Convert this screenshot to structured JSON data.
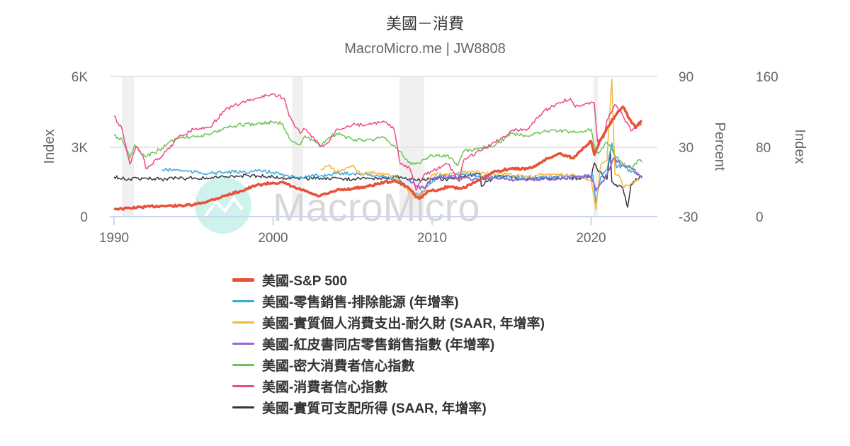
{
  "header": {
    "title": "美國－消費",
    "subtitle": "MacroMicro.me | JW8808"
  },
  "watermark": {
    "text": "MacroMicro",
    "logo": "macromicro-logo-icon"
  },
  "axes": {
    "left": {
      "title": "Index",
      "ticks": [
        "6K",
        "3K",
        "0"
      ]
    },
    "right1": {
      "title": "Percent",
      "ticks": [
        "90",
        "30",
        "-30"
      ]
    },
    "right2": {
      "title": "Index",
      "ticks": [
        "160",
        "80",
        "0"
      ]
    },
    "x": {
      "ticks": [
        "1990",
        "2000",
        "2010",
        "2020"
      ]
    }
  },
  "legend": [
    {
      "label": "美國-S&P 500",
      "color": "#e8513a"
    },
    {
      "label": "美國-零售銷售-排除能源 (年增率)",
      "color": "#3aa7d8"
    },
    {
      "label": "美國-實質個人消費支出-耐久財 (SAAR, 年增率)",
      "color": "#f4b63a"
    },
    {
      "label": "美國-紅皮書同店零售銷售指數 (年增率)",
      "color": "#9168e0"
    },
    {
      "label": "美國-密大消費者信心指數",
      "color": "#6cc454"
    },
    {
      "label": "美國-消費者信心指數",
      "color": "#ea4c86"
    },
    {
      "label": "美國-實質可支配所得 (SAAR, 年增率)",
      "color": "#333845"
    }
  ],
  "chart_data": {
    "type": "line",
    "title": "美國－消費",
    "subtitle": "MacroMicro.me | JW8808",
    "xlabel": "",
    "xlim": [
      1989.8,
      2023.3
    ],
    "x_ticks": [
      1990,
      2000,
      2010,
      2020
    ],
    "grid": true,
    "legend_position": "bottom",
    "recession_bands": [
      [
        1990.5,
        1991.25
      ],
      [
        2001.2,
        2001.9
      ],
      [
        2007.95,
        2009.5
      ],
      [
        2020.15,
        2020.4
      ]
    ],
    "y_axes": [
      {
        "id": "left",
        "title": "Index",
        "range": [
          0,
          6000
        ],
        "ticks": [
          0,
          3000,
          6000
        ],
        "tick_labels": [
          "0",
          "3K",
          "6K"
        ]
      },
      {
        "id": "percent",
        "title": "Percent",
        "range": [
          -30,
          90
        ],
        "ticks": [
          -30,
          30,
          90
        ]
      },
      {
        "id": "right_index",
        "title": "Index",
        "range": [
          0,
          160
        ],
        "ticks": [
          0,
          80,
          160
        ]
      }
    ],
    "series": [
      {
        "name": "美國-S&P 500",
        "axis": "left",
        "color": "#e8513a",
        "width": 3.5,
        "x": [
          1990,
          1990.5,
          1991,
          1992,
          1993,
          1994,
          1995,
          1996,
          1997,
          1998,
          1999,
          2000,
          2000.7,
          2001.5,
          2002,
          2002.8,
          2003.5,
          2004,
          2005,
          2006,
          2007,
          2007.8,
          2008.5,
          2009.2,
          2009.8,
          2010.5,
          2011,
          2011.8,
          2012.5,
          2013,
          2014,
          2015,
          2016,
          2016.5,
          2017,
          2018,
          2018.9,
          2019.5,
          2020,
          2020.2,
          2020.6,
          2021,
          2021.5,
          2022,
          2022.4,
          2022.8,
          2023.2
        ],
        "values": [
          340,
          330,
          370,
          420,
          460,
          460,
          500,
          680,
          900,
          1100,
          1350,
          1450,
          1440,
          1200,
          1100,
          880,
          990,
          1130,
          1200,
          1300,
          1480,
          1500,
          1250,
          760,
          1100,
          1150,
          1300,
          1200,
          1400,
          1550,
          1950,
          2050,
          2050,
          2150,
          2400,
          2700,
          2500,
          2950,
          3230,
          2650,
          3300,
          3800,
          4300,
          4700,
          4200,
          3800,
          4100
        ]
      },
      {
        "name": "美國-零售銷售-排除能源 (年增率)",
        "axis": "percent",
        "color": "#3aa7d8",
        "width": 1.5,
        "x": [
          1993,
          1994,
          1995,
          1996,
          1997,
          1998,
          1999,
          2000,
          2001,
          2002,
          2003,
          2004,
          2005,
          2006,
          2007,
          2008,
          2008.8,
          2009.2,
          2009.8,
          2010.5,
          2012,
          2014,
          2016,
          2018,
          2019.5,
          2020.1,
          2020.3,
          2020.6,
          2021,
          2021.3,
          2021.6,
          2022,
          2022.5,
          2023
        ],
        "values": [
          10,
          10,
          8,
          7,
          8,
          8,
          9,
          8,
          4,
          4,
          5,
          7,
          7,
          6,
          4,
          1,
          -10,
          -12,
          -3,
          6,
          6,
          4,
          3,
          5,
          4,
          6,
          -18,
          4,
          10,
          33,
          12,
          14,
          8,
          6
        ]
      },
      {
        "name": "美國-實質個人消費支出-耐久財 (SAAR, 年增率)",
        "axis": "percent",
        "color": "#f4b63a",
        "width": 1.5,
        "x": [
          2003,
          2003.5,
          2004,
          2004.5,
          2005,
          2005.5,
          2006,
          2007,
          2007.8,
          2008.5,
          2009,
          2009.5,
          2010,
          2011,
          2012,
          2013,
          2014,
          2015,
          2016,
          2017,
          2018,
          2019,
          2020,
          2020.3,
          2020.6,
          2021,
          2021.3,
          2021.5,
          2021.8,
          2022,
          2022.5,
          2023
        ],
        "values": [
          10,
          14,
          8,
          10,
          14,
          6,
          8,
          6,
          4,
          -8,
          -14,
          -8,
          6,
          6,
          8,
          8,
          6,
          6,
          4,
          6,
          6,
          5,
          2,
          -24,
          14,
          18,
          88,
          6,
          4,
          -4,
          -2,
          2
        ]
      },
      {
        "name": "美國-紅皮書同店零售銷售指數 (年增率)",
        "axis": "percent",
        "color": "#9168e0",
        "width": 2,
        "x": [
          2008.5,
          2009,
          2009.5,
          2010,
          2011,
          2012,
          2013,
          2014,
          2015,
          2016,
          2017,
          2018,
          2019,
          2020,
          2020.3,
          2020.6,
          2021,
          2021.4,
          2021.8,
          2022,
          2022.5,
          2023,
          2023.2
        ],
        "values": [
          2,
          -4,
          -6,
          3,
          4,
          3,
          2,
          3,
          2,
          1,
          2,
          3,
          4,
          5,
          -8,
          -2,
          6,
          20,
          16,
          14,
          12,
          6,
          3
        ]
      },
      {
        "name": "美國-密大消費者信心指數",
        "axis": "right_index",
        "color": "#6cc454",
        "width": 1.5,
        "x": [
          1990,
          1990.5,
          1991,
          1991.3,
          1991.7,
          1992,
          1993,
          1994,
          1995,
          1996,
          1997,
          1998,
          1999,
          2000,
          2000.6,
          2001,
          2001.7,
          2002,
          2003,
          2003.5,
          2004,
          2005,
          2006,
          2007,
          2007.8,
          2008.5,
          2009,
          2010,
          2011,
          2011.6,
          2012,
          2013,
          2014,
          2015,
          2016,
          2017,
          2018,
          2019,
          2020,
          2020.3,
          2020.6,
          2021,
          2021.5,
          2022,
          2022.5,
          2023,
          2023.2
        ],
        "values": [
          93,
          88,
          67,
          82,
          72,
          68,
          78,
          90,
          92,
          93,
          102,
          105,
          106,
          108,
          106,
          90,
          82,
          92,
          80,
          90,
          95,
          88,
          88,
          90,
          78,
          62,
          60,
          70,
          70,
          58,
          75,
          78,
          82,
          95,
          92,
          97,
          98,
          96,
          100,
          72,
          75,
          85,
          70,
          60,
          55,
          65,
          62
        ]
      },
      {
        "name": "美國-消費者信心指數",
        "axis": "right_index",
        "color": "#ea4c86",
        "width": 1.5,
        "x": [
          1990,
          1990.5,
          1991,
          1991.4,
          1991.8,
          1992,
          1992.7,
          1993,
          1994,
          1995,
          1996,
          1997,
          1998,
          1999,
          2000,
          2000.7,
          2001,
          2001.7,
          2002,
          2003,
          2003.5,
          2004,
          2005,
          2006,
          2007,
          2007.6,
          2008,
          2008.6,
          2009,
          2009.5,
          2010,
          2011,
          2011.7,
          2012,
          2013,
          2014,
          2015,
          2016,
          2017,
          2018,
          2018.7,
          2019,
          2019.8,
          2020.2,
          2020.4,
          2020.8,
          2021,
          2021.5,
          2022,
          2022.5,
          2023,
          2023.2
        ],
        "values": [
          115,
          100,
          60,
          80,
          70,
          55,
          65,
          68,
          90,
          100,
          102,
          122,
          130,
          135,
          140,
          135,
          115,
          95,
          100,
          80,
          85,
          100,
          105,
          105,
          108,
          100,
          60,
          55,
          30,
          48,
          52,
          60,
          40,
          65,
          75,
          85,
          98,
          100,
          120,
          130,
          135,
          125,
          130,
          130,
          85,
          90,
          110,
          128,
          115,
          98,
          108,
          105
        ]
      },
      {
        "name": "美國-實質可支配所得 (SAAR, 年增率)",
        "axis": "percent",
        "color": "#333845",
        "width": 1.5,
        "x": [
          1990,
          1991,
          1992,
          1993,
          1994,
          1995,
          1996,
          1997,
          1998,
          1999,
          2000,
          2001,
          2002,
          2003,
          2004,
          2005,
          2006,
          2007,
          2008,
          2009,
          2010,
          2011,
          2012,
          2013,
          2013.1,
          2014,
          2015,
          2016,
          2017,
          2018,
          2019,
          2020,
          2020.2,
          2020.4,
          2020.7,
          2021,
          2021.2,
          2021.3,
          2021.5,
          2021.8,
          2022,
          2022.3,
          2022.5,
          2022.9,
          2023.2
        ],
        "values": [
          4,
          2,
          3,
          2,
          3,
          3,
          3,
          4,
          5,
          5,
          4,
          3,
          3,
          3,
          3,
          2,
          3,
          3,
          4,
          1,
          2,
          2,
          4,
          7,
          -4,
          5,
          4,
          2,
          3,
          3,
          3,
          3,
          16,
          10,
          6,
          2,
          26,
          0,
          -3,
          -3,
          -6,
          -22,
          -3,
          2,
          4
        ]
      }
    ]
  }
}
